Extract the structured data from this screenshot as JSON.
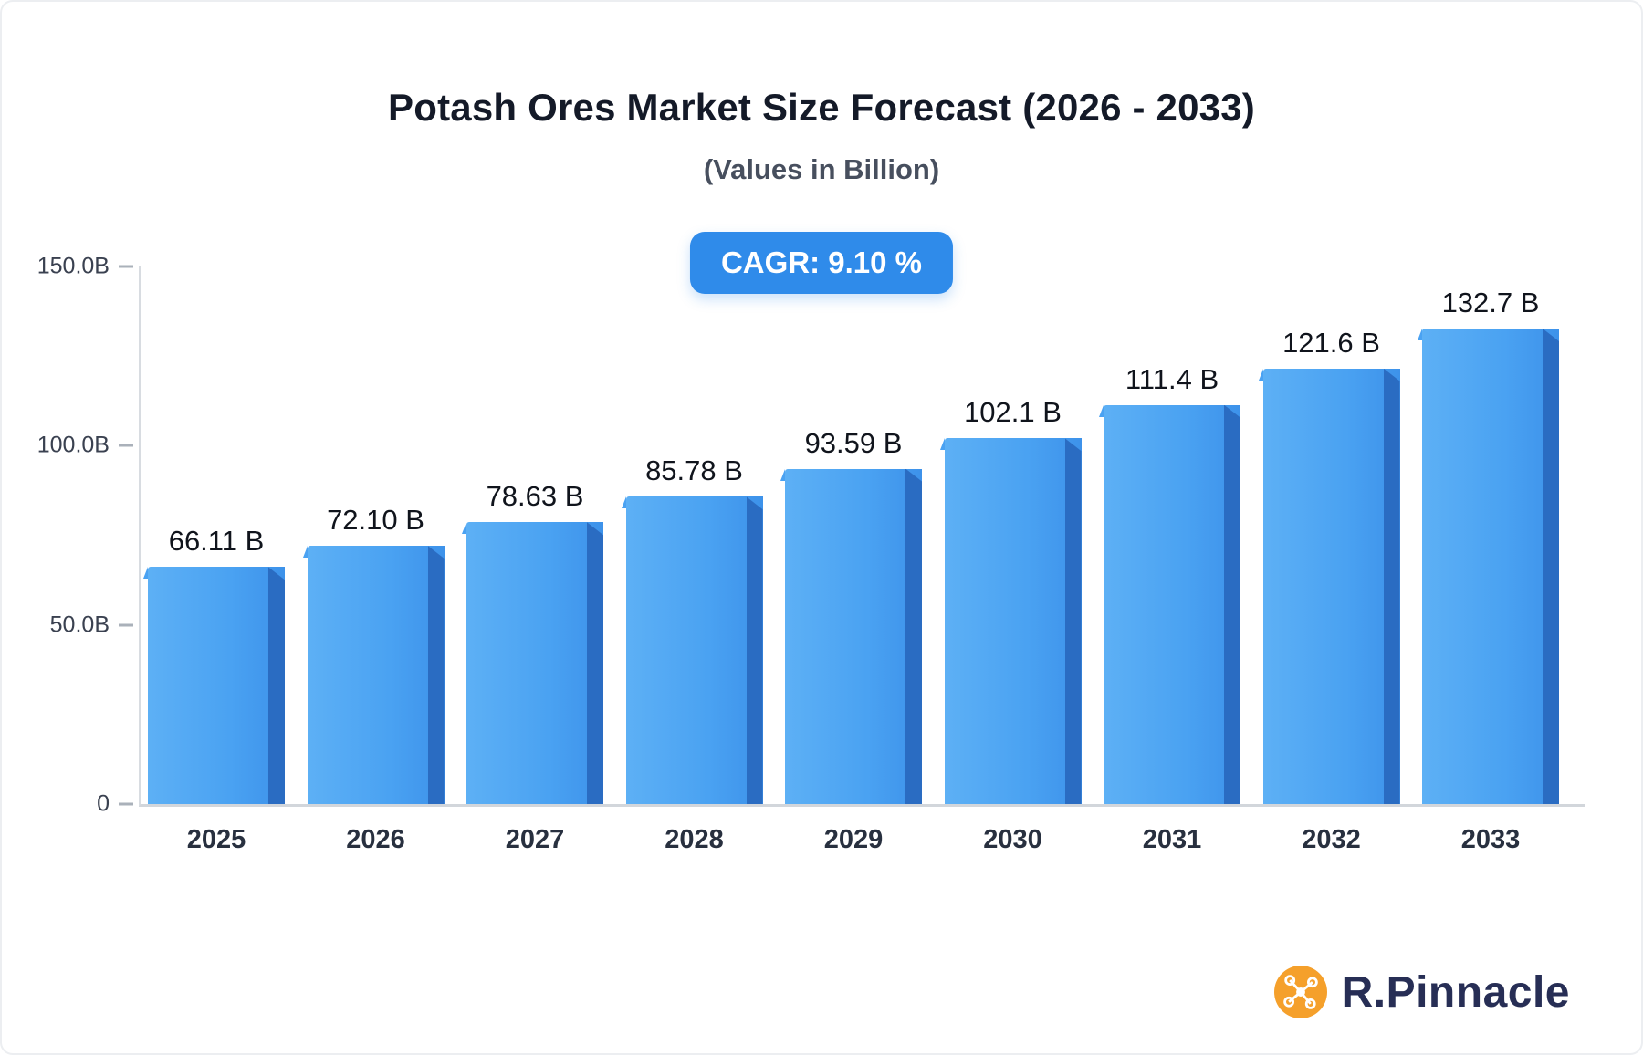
{
  "chart_data": {
    "type": "bar",
    "title": "Potash Ores Market Size Forecast (2026 - 2033)",
    "subtitle": "(Values in Billion)",
    "badge": "CAGR: 9.10 %",
    "categories": [
      "2025",
      "2026",
      "2027",
      "2028",
      "2029",
      "2030",
      "2031",
      "2032",
      "2033"
    ],
    "values": [
      66.11,
      72.1,
      78.63,
      85.78,
      93.59,
      102.1,
      111.4,
      121.6,
      132.7
    ],
    "value_labels": [
      "66.11 B",
      "72.10 B",
      "78.63 B",
      "85.78 B",
      "93.59 B",
      "102.1 B",
      "111.4 B",
      "121.6 B",
      "132.7 B"
    ],
    "xlabel": "",
    "ylabel": "",
    "ylim": [
      0,
      150
    ],
    "yticks": [
      {
        "label": "150.0B",
        "value": 150
      },
      {
        "label": "100.0B",
        "value": 100
      },
      {
        "label": "50.0B",
        "value": 50
      },
      {
        "label": "0",
        "value": 0
      }
    ],
    "grid": false,
    "legend": "none"
  },
  "logo": {
    "text": "R.Pinnacle"
  },
  "colors": {
    "bar_front": "#4aa2f2",
    "bar_front_light": "#5db0f5",
    "bar_side": "#2a6cc2",
    "badge_bg": "#2f8bea",
    "accent_orange": "#f5a02b",
    "title": "#141a28",
    "logo_text": "#272e55"
  }
}
